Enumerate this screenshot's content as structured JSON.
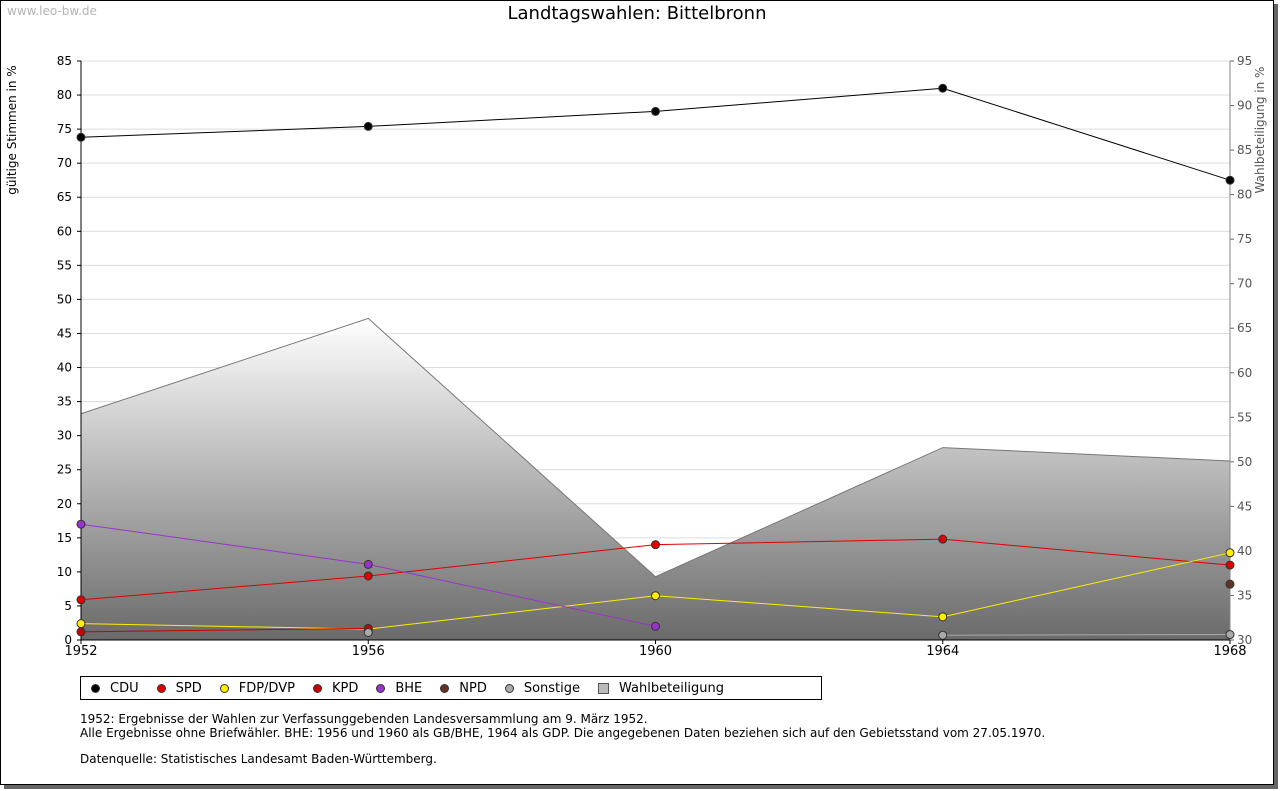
{
  "watermark": "www.leo-bw.de",
  "chart_data": {
    "type": "line",
    "title": "Landtagswahlen: Bittelbronn",
    "ylabel": "gültige Stimmen in %",
    "y2label": "Wahlbeteiligung in %",
    "ylim": [
      0,
      85
    ],
    "y2lim": [
      30,
      95
    ],
    "yticks": [
      "0",
      "5",
      "10",
      "15",
      "20",
      "25",
      "30",
      "35",
      "40",
      "45",
      "50",
      "55",
      "60",
      "65",
      "70",
      "75",
      "80",
      "85"
    ],
    "y2ticks": [
      "30",
      "35",
      "40",
      "45",
      "50",
      "55",
      "60",
      "65",
      "70",
      "75",
      "80",
      "85",
      "90",
      "95"
    ],
    "categories": [
      "1952",
      "1956",
      "1960",
      "1964",
      "1968"
    ],
    "series": [
      {
        "name": "CDU",
        "color": "#000000",
        "values": [
          73.8,
          75.4,
          77.6,
          81.0,
          67.5
        ]
      },
      {
        "name": "SPD",
        "color": "#e00000",
        "values": [
          5.9,
          9.4,
          14.0,
          14.8,
          11.0
        ]
      },
      {
        "name": "FDP/DVP",
        "color": "#ffee00",
        "values": [
          2.4,
          1.6,
          6.5,
          3.4,
          12.8
        ]
      },
      {
        "name": "KPD",
        "color": "#cc0000",
        "values": [
          1.2,
          1.7,
          null,
          null,
          null
        ]
      },
      {
        "name": "BHE",
        "color": "#9933cc",
        "values": [
          17.0,
          11.1,
          2.0,
          null,
          null
        ]
      },
      {
        "name": "NPD",
        "color": "#663322",
        "values": [
          null,
          null,
          null,
          null,
          8.2
        ]
      },
      {
        "name": "Sonstige",
        "color": "#aaaaaa",
        "values": [
          null,
          1.1,
          null,
          0.7,
          0.8
        ]
      }
    ],
    "turnout": {
      "name": "Wahlbeteiligung",
      "values": [
        55.4,
        66.1,
        37.1,
        51.6,
        50.1
      ]
    }
  },
  "legend": [
    {
      "label": "CDU",
      "color": "#000000",
      "kind": "dot"
    },
    {
      "label": "SPD",
      "color": "#e00000",
      "kind": "dot"
    },
    {
      "label": "FDP/DVP",
      "color": "#ffee00",
      "kind": "dot"
    },
    {
      "label": "KPD",
      "color": "#cc0000",
      "kind": "dot"
    },
    {
      "label": "BHE",
      "color": "#9933cc",
      "kind": "dot"
    },
    {
      "label": "NPD",
      "color": "#663322",
      "kind": "dot"
    },
    {
      "label": "Sonstige",
      "color": "#aaaaaa",
      "kind": "dot"
    },
    {
      "label": "Wahlbeteiligung",
      "color": "#bbbbbb",
      "kind": "square"
    }
  ],
  "notes": {
    "line1": "1952: Ergebnisse der Wahlen zur Verfassunggebenden Landesversammlung am 9. März 1952.",
    "line2": "Alle Ergebnisse ohne Briefwähler. BHE: 1956 und 1960 als GB/BHE, 1964 als GDP. Die angegebenen Daten beziehen sich auf den Gebietsstand vom 27.05.1970.",
    "source": "Datenquelle: Statistisches Landesamt Baden-Württemberg."
  }
}
